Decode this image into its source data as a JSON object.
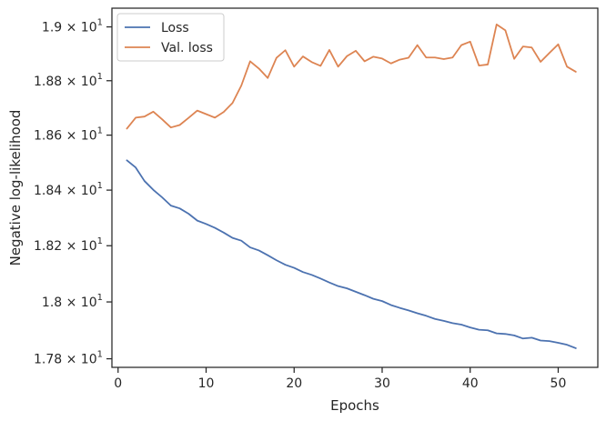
{
  "chart_data": {
    "type": "line",
    "title": "",
    "xlabel": "Epochs",
    "ylabel": "Negative log-likelihood",
    "xlim": [
      -0.7,
      54.5
    ],
    "ylim": [
      17.77,
      19.07
    ],
    "yscale": "log",
    "xticks": [
      0,
      10,
      20,
      30,
      40,
      50
    ],
    "xtick_labels": [
      "0",
      "10",
      "20",
      "30",
      "40",
      "50"
    ],
    "yticks": [
      17.8,
      18.0,
      18.2,
      18.4,
      18.6,
      18.8,
      19.0
    ],
    "ytick_labels": [
      {
        "mantissa": "1.78",
        "exp": "1"
      },
      {
        "mantissa": "1.8",
        "exp": "1"
      },
      {
        "mantissa": "1.82",
        "exp": "1"
      },
      {
        "mantissa": "1.84",
        "exp": "1"
      },
      {
        "mantissa": "1.86",
        "exp": "1"
      },
      {
        "mantissa": "1.88",
        "exp": "1"
      },
      {
        "mantissa": "1.9",
        "exp": "1"
      }
    ],
    "legend_position": "top-left",
    "x": [
      1,
      2,
      3,
      4,
      5,
      6,
      7,
      8,
      9,
      10,
      11,
      12,
      13,
      14,
      15,
      16,
      17,
      18,
      19,
      20,
      21,
      22,
      23,
      24,
      25,
      26,
      27,
      28,
      29,
      30,
      31,
      32,
      33,
      34,
      35,
      36,
      37,
      38,
      39,
      40,
      41,
      42,
      43,
      44,
      45,
      46,
      47,
      48,
      49,
      50,
      51,
      52
    ],
    "series": [
      {
        "name": "Loss",
        "color": "#4c72b0",
        "values": [
          18.508,
          18.482,
          18.433,
          18.401,
          18.374,
          18.344,
          18.334,
          18.315,
          18.29,
          18.278,
          18.264,
          18.247,
          18.228,
          18.218,
          18.194,
          18.183,
          18.166,
          18.148,
          18.132,
          18.121,
          18.106,
          18.096,
          18.083,
          18.069,
          18.056,
          18.048,
          18.036,
          18.024,
          18.011,
          18.003,
          17.989,
          17.979,
          17.97,
          17.96,
          17.951,
          17.94,
          17.933,
          17.925,
          17.92,
          17.91,
          17.902,
          17.9,
          17.889,
          17.887,
          17.882,
          17.871,
          17.874,
          17.864,
          17.862,
          17.856,
          17.849,
          17.837
        ]
      },
      {
        "name": "Val. loss",
        "color": "#dd8452",
        "values": [
          18.624,
          18.664,
          18.668,
          18.686,
          18.658,
          18.628,
          18.637,
          18.663,
          18.69,
          18.677,
          18.664,
          18.685,
          18.718,
          18.782,
          18.872,
          18.845,
          18.81,
          18.885,
          18.913,
          18.852,
          18.89,
          18.869,
          18.855,
          18.914,
          18.852,
          18.891,
          18.911,
          18.872,
          18.889,
          18.882,
          18.864,
          18.878,
          18.885,
          18.932,
          18.886,
          18.886,
          18.88,
          18.886,
          18.932,
          18.945,
          18.856,
          18.86,
          19.009,
          18.987,
          18.881,
          18.927,
          18.923,
          18.87,
          18.903,
          18.935,
          18.852,
          18.833
        ]
      }
    ]
  }
}
